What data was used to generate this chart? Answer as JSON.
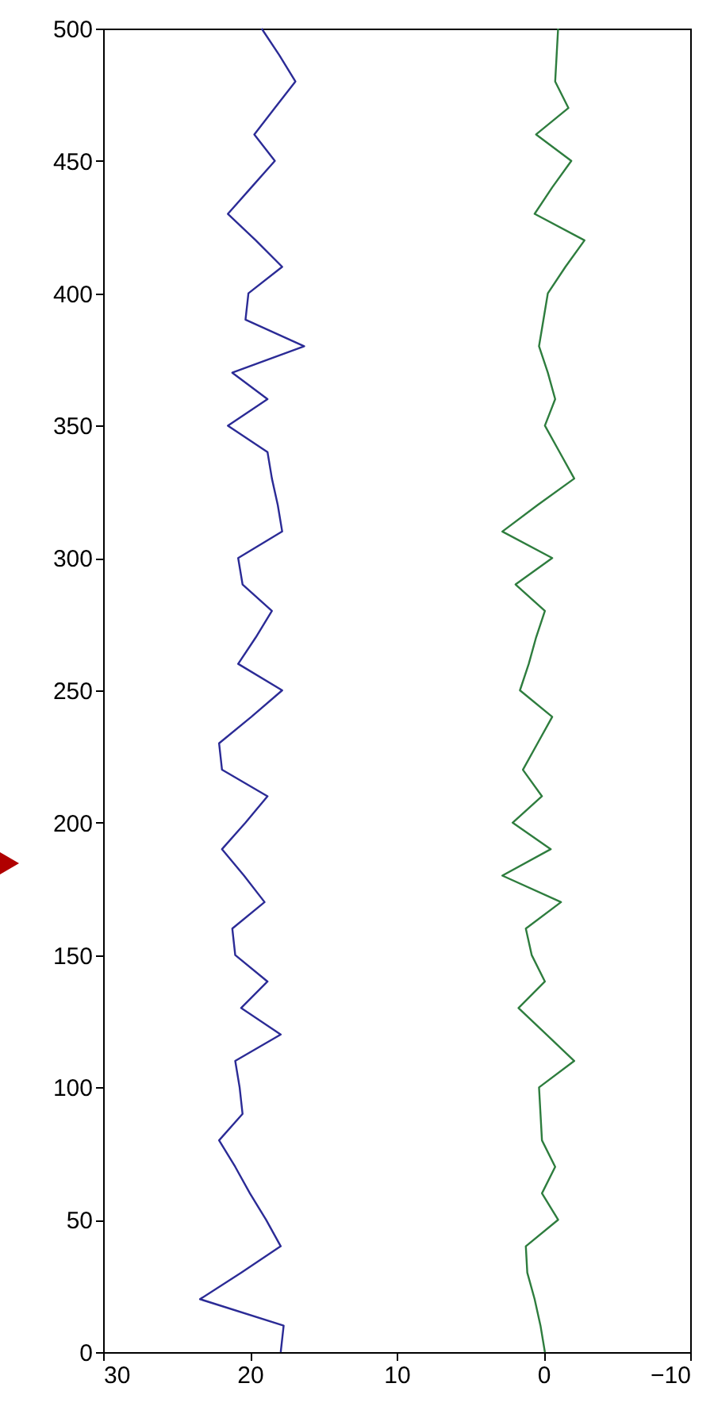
{
  "chart_data": {
    "type": "line",
    "orientation": "horizontal",
    "x": [
      0,
      10,
      20,
      30,
      40,
      50,
      60,
      70,
      80,
      90,
      100,
      110,
      120,
      130,
      140,
      150,
      160,
      170,
      180,
      190,
      200,
      210,
      220,
      230,
      240,
      250,
      260,
      270,
      280,
      290,
      300,
      310,
      320,
      330,
      340,
      350,
      360,
      370,
      380,
      390,
      400,
      410,
      420,
      430,
      440,
      450,
      460,
      470,
      480,
      490,
      500
    ],
    "series": [
      {
        "color": "#2b2b96",
        "values": [
          17.9,
          17.7,
          23.4,
          20.6,
          17.9,
          18.9,
          20.0,
          21.0,
          22.1,
          20.5,
          20.7,
          21.0,
          17.9,
          20.6,
          18.8,
          21.0,
          21.2,
          19.0,
          20.4,
          21.9,
          20.3,
          18.8,
          21.9,
          22.1,
          19.9,
          17.8,
          20.8,
          19.6,
          18.5,
          20.5,
          20.8,
          17.8,
          18.1,
          18.5,
          18.8,
          21.5,
          18.8,
          21.2,
          16.3,
          20.3,
          20.1,
          17.8,
          19.6,
          21.5,
          19.9,
          18.3,
          19.7,
          18.3,
          16.9,
          18.0,
          19.2
        ]
      },
      {
        "color": "#2e7d3e",
        "values": [
          -0.1,
          0.2,
          0.6,
          1.1,
          1.2,
          -1.0,
          0.1,
          -0.8,
          0.1,
          0.2,
          0.3,
          -2.1,
          -0.2,
          1.7,
          -0.1,
          0.8,
          1.2,
          -1.2,
          2.8,
          -0.5,
          2.1,
          0.1,
          1.4,
          0.4,
          -0.6,
          1.6,
          1.0,
          0.5,
          -0.1,
          1.9,
          -0.6,
          2.8,
          0.4,
          -2.1,
          -1.1,
          -0.1,
          -0.8,
          -0.3,
          0.3,
          0.0,
          -0.3,
          -1.5,
          -2.8,
          0.6,
          -0.6,
          -1.9,
          0.5,
          -1.7,
          -0.8,
          -0.9,
          -1.0
        ]
      }
    ],
    "xlim": [
      30,
      -10
    ],
    "xticks": [
      30,
      20,
      10,
      0,
      -10
    ],
    "ylim": [
      0,
      500
    ],
    "yticks": [
      0,
      50,
      100,
      150,
      200,
      250,
      300,
      350,
      400,
      450,
      500
    ],
    "grid": false
  }
}
